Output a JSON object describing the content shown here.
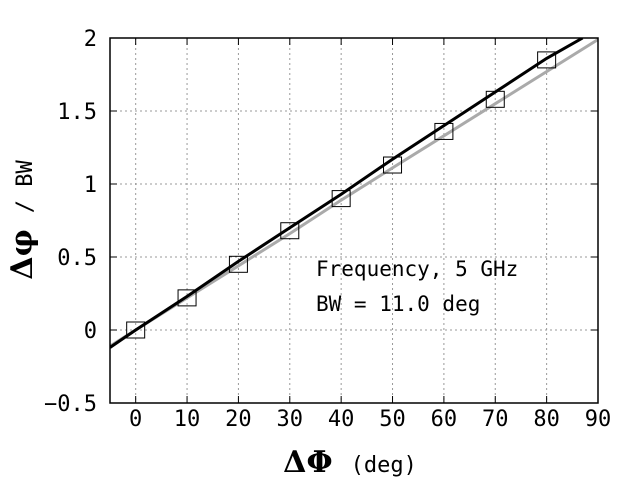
{
  "chart_data": {
    "type": "line",
    "xlabel_symbol": "ΔΦ",
    "xlabel_unit": "(deg)",
    "ylabel_symbol": "Δφ",
    "ylabel_unit": "/ BW",
    "xlim": [
      -5,
      90
    ],
    "ylim": [
      -0.5,
      2
    ],
    "xticks": [
      0,
      10,
      20,
      30,
      40,
      50,
      60,
      70,
      80,
      90
    ],
    "yticks": [
      -0.5,
      0,
      0.5,
      1,
      1.5,
      2
    ],
    "ytick_labels": [
      "−0.5",
      "0",
      "0.5",
      "1",
      "1.5",
      "2"
    ],
    "grid": true,
    "annotations": [
      "Frequency, 5 GHz",
      "BW = 11.0 deg"
    ],
    "series": [
      {
        "style": "markers",
        "marker": "square",
        "color": "#000000",
        "x": [
          0,
          10,
          20,
          30,
          40,
          50,
          60,
          70,
          80
        ],
        "y": [
          0.0,
          0.22,
          0.45,
          0.68,
          0.9,
          1.13,
          1.36,
          1.58,
          1.85
        ]
      },
      {
        "style": "line",
        "color": "#000000",
        "x": [
          -5,
          0,
          10,
          20,
          30,
          40,
          50,
          60,
          70,
          80,
          87
        ],
        "y": [
          -0.12,
          0.0,
          0.23,
          0.47,
          0.7,
          0.93,
          1.17,
          1.4,
          1.63,
          1.86,
          2.0
        ]
      },
      {
        "style": "line",
        "color": "#aaaaaa",
        "x": [
          -5,
          0,
          10,
          20,
          30,
          40,
          50,
          60,
          70,
          80,
          90
        ],
        "y": [
          -0.11,
          0.0,
          0.22,
          0.44,
          0.66,
          0.89,
          1.11,
          1.33,
          1.55,
          1.77,
          1.99
        ]
      }
    ]
  }
}
